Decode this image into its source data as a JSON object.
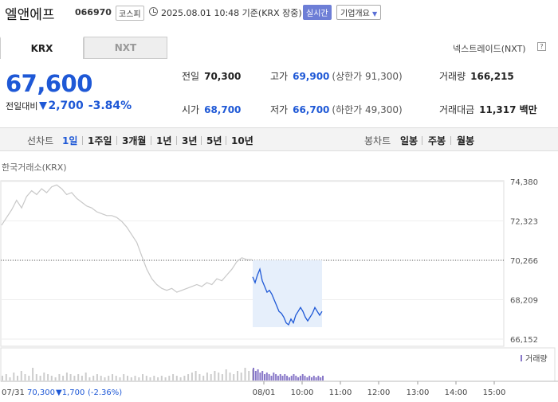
{
  "header": {
    "stock_name": "엘앤에프",
    "stock_code": "066970",
    "market_badge": "코스피",
    "timestamp": "2025.08.01 10:48 기준(KRX 장중)",
    "realtime_label": "실시간",
    "overview_label": "기업개요"
  },
  "market_tabs": [
    {
      "label": "KRX",
      "active": true
    },
    {
      "label": "NXT",
      "active": false
    }
  ],
  "nxt_link": "넥스트레이드(NXT)",
  "help_glyph": "?",
  "price": {
    "current": "67,600",
    "change_label": "전일대비",
    "change": "2,700",
    "change_pct": "-3.84%"
  },
  "stats": {
    "prev_close": {
      "label": "전일",
      "value": "70,300"
    },
    "high": {
      "label": "고가",
      "value": "69,900",
      "sub": "(상한가 91,300)"
    },
    "volume": {
      "label": "거래량",
      "value": "166,215"
    },
    "open": {
      "label": "시가",
      "value": "68,700"
    },
    "low": {
      "label": "저가",
      "value": "66,700",
      "sub": "(하한가 49,300)"
    },
    "amount": {
      "label": "거래대금",
      "value": "11,317 백만"
    }
  },
  "period_bar": {
    "line_label": "선차트",
    "line_periods": [
      "1일",
      "1주일",
      "3개월",
      "1년",
      "3년",
      "5년",
      "10년"
    ],
    "selected": "1일",
    "candle_label": "봉차트",
    "candle_periods": [
      "일봉",
      "주봉",
      "월봉"
    ]
  },
  "chart_source": "한국거래소(KRX)",
  "chart_data": {
    "type": "line",
    "y_ticks": [
      "74,380",
      "72,323",
      "70,266",
      "68,209",
      "66,152"
    ],
    "ylim": [
      66152,
      74380
    ],
    "x_ticks": [
      "08/01",
      "10:00",
      "11:00",
      "12:00",
      "13:00",
      "14:00",
      "15:00"
    ],
    "reference_line": 70266,
    "volume_legend": "거래량",
    "prev_day_summary": {
      "date": "07/31",
      "close": "70,300",
      "change": "▼1,700",
      "pct": "(-2.36%)"
    },
    "series": [
      {
        "values": [
          72100,
          72500,
          72900,
          73400,
          73000,
          73600,
          73900,
          73700,
          74000,
          73800,
          74100,
          74200,
          74000,
          73700,
          73800,
          73500,
          73300,
          73100,
          73000,
          72800,
          72700,
          72600,
          72600,
          72500,
          72300,
          72000,
          71600,
          71200,
          70500,
          69800,
          69300,
          69000,
          68800,
          68700,
          68800,
          68600,
          68700,
          68800,
          68900,
          69000,
          68900,
          69100,
          69000,
          69300,
          69200,
          69500,
          69800,
          70200,
          70400,
          70300,
          70300
        ]
      },
      {
        "values": [
          69400,
          69100,
          69500,
          69800,
          69200,
          68900,
          68600,
          68700,
          68500,
          68200,
          67900,
          67600,
          67500,
          67300,
          67000,
          66900,
          67200,
          67000,
          67400,
          67600,
          67800,
          67600,
          67300,
          67100,
          67300,
          67500,
          67800,
          67600,
          67400,
          67600
        ]
      }
    ],
    "volume": {
      "prev": [
        3,
        4,
        2,
        5,
        3,
        6,
        4,
        3,
        8,
        4,
        3,
        5,
        4,
        3,
        2,
        4,
        3,
        5,
        4,
        3,
        4,
        3,
        5,
        2,
        3,
        4,
        3,
        2,
        3,
        4,
        3,
        2,
        4,
        3,
        2,
        3,
        2,
        4,
        3,
        2,
        3,
        2,
        3,
        2,
        3,
        4,
        3,
        2,
        3,
        4,
        5,
        6,
        4,
        3,
        5,
        4,
        6,
        5,
        4,
        7,
        5,
        4,
        6,
        5,
        8,
        6,
        7
      ],
      "today": [
        8,
        6,
        7,
        5,
        6,
        4,
        5,
        4,
        3,
        5,
        4,
        3,
        4,
        3,
        4,
        3,
        2,
        3,
        4,
        3,
        2,
        3,
        4,
        3,
        2,
        3,
        2,
        3,
        2,
        3,
        2,
        3
      ]
    }
  },
  "colors": {
    "prev_line": "#c8c8c8",
    "today_line": "#1e58d6",
    "today_fill": "#e6effb",
    "price_blue": "#1e58d6"
  }
}
